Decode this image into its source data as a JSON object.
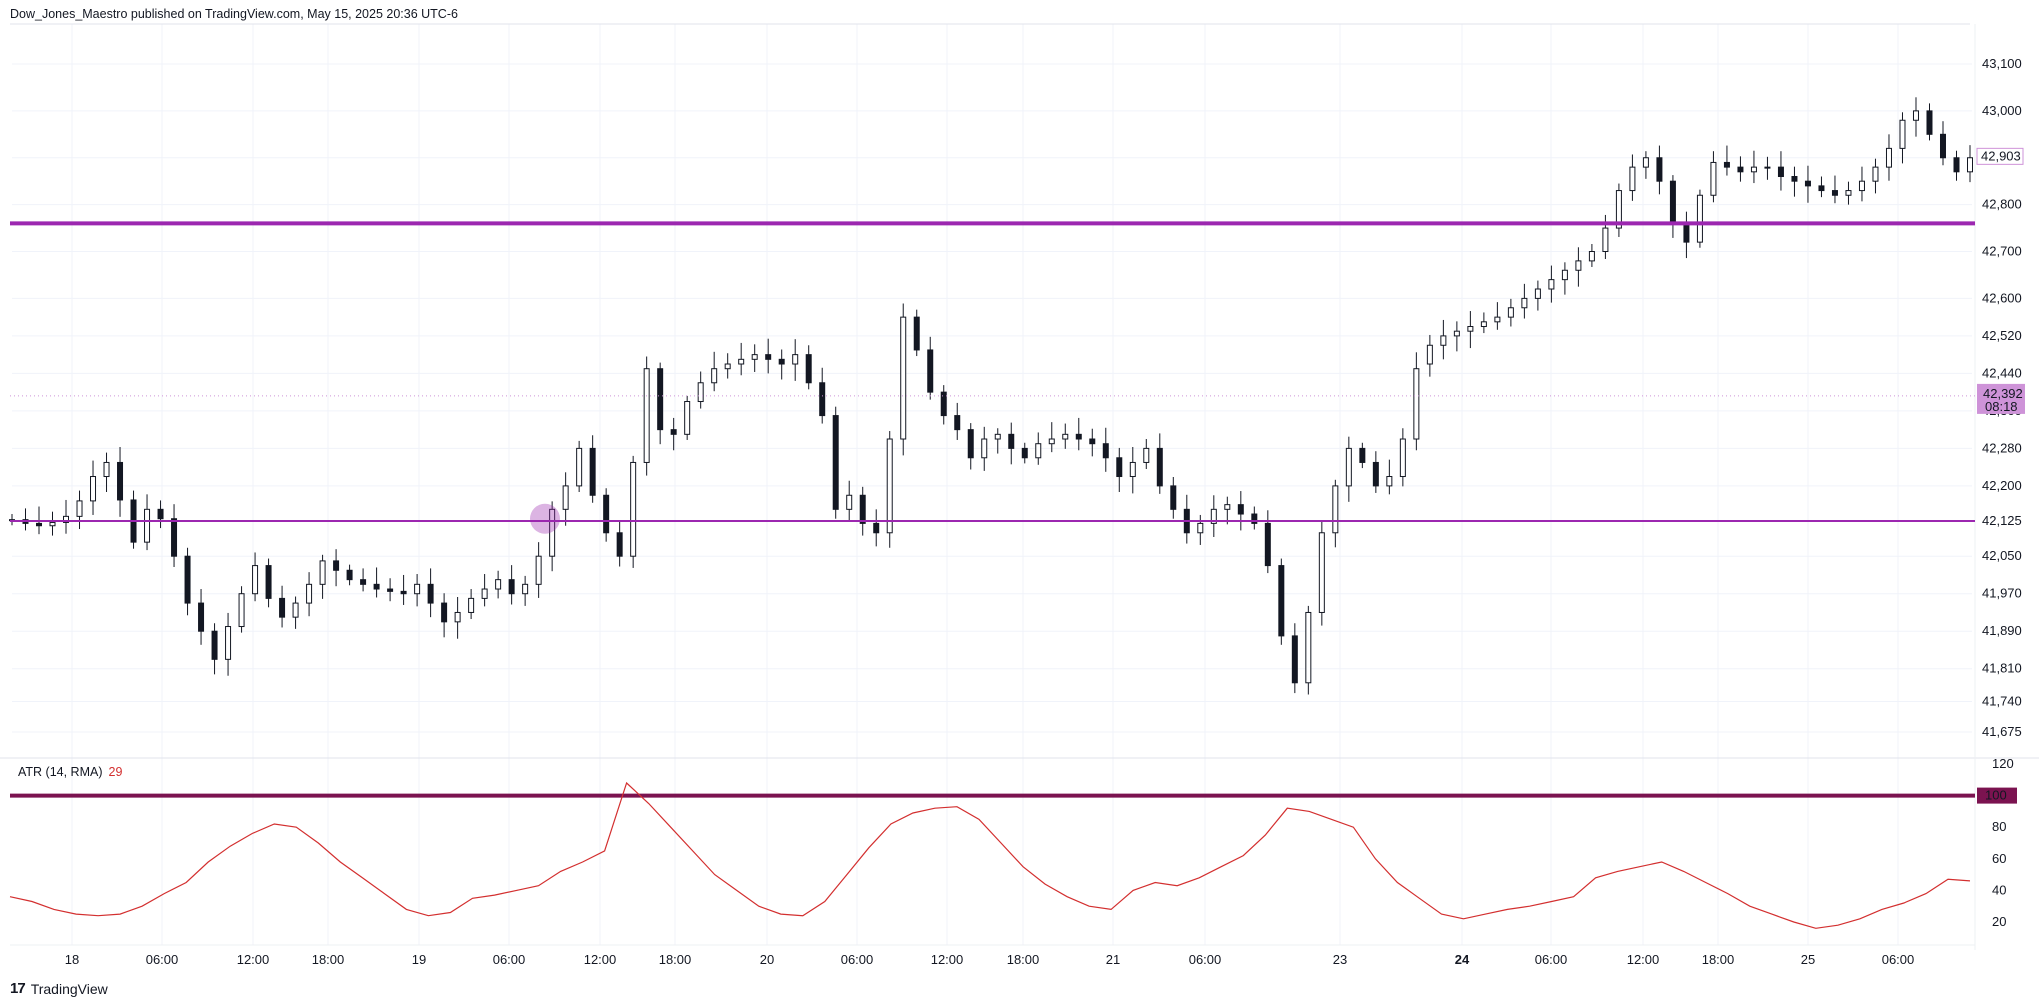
{
  "header": {
    "published_text": "Dow_Jones_Maestro published on TradingView.com, May 15, 2025 20:36 UTC-6"
  },
  "footer": {
    "logo_glyph": "17",
    "brand": "TradingView"
  },
  "colors": {
    "level_line": "#9c27b0",
    "atr_line": "#d32f2f",
    "atr_threshold": "#7b1350",
    "price_tag": "#ce93d8",
    "candle": "#131722"
  },
  "chart_data": [
    {
      "type": "candlestick",
      "title": "",
      "ylim": [
        41630,
        43170
      ],
      "y_ticks": [
        "43,100",
        "43,000",
        "42,900",
        "42,800",
        "42,700",
        "42,600",
        "42,520",
        "42,440",
        "42,360",
        "42,280",
        "42,200",
        "42,125",
        "42,050",
        "41,970",
        "41,890",
        "41,810",
        "41,740",
        "41,675"
      ],
      "last_price_tag": {
        "value": "42,392",
        "countdown": "08:18"
      },
      "reference_price_tag": "42,903",
      "horizontal_levels": [
        {
          "value": 42760,
          "style": "thick"
        },
        {
          "value": 42125,
          "style": "thin"
        }
      ],
      "marker_value": 42130,
      "series": [
        {
          "values": [
            42128,
            42120,
            42115,
            42122,
            42135,
            42168,
            42220,
            42250,
            42170,
            42080,
            42150,
            42130,
            42050,
            41950,
            41890,
            41830,
            41900,
            41970,
            42030,
            41960,
            41920,
            41950,
            41990,
            42040,
            42020,
            42000,
            41990,
            41980,
            41975,
            41970,
            41990,
            41950,
            41910,
            41930,
            41960,
            41980,
            42000,
            41970,
            41990,
            42050,
            42150,
            42200,
            42280,
            42180,
            42100,
            42050,
            42250,
            42450,
            42320,
            42310,
            42380,
            42420,
            42450,
            42460,
            42470,
            42480,
            42470,
            42460,
            42480,
            42420,
            42350,
            42150,
            42180,
            42120,
            42100,
            42300,
            42560,
            42490,
            42400,
            42350,
            42320,
            42260,
            42300,
            42310,
            42280,
            42260,
            42290,
            42300,
            42310,
            42300,
            42290,
            42260,
            42220,
            42250,
            42280,
            42200,
            42150,
            42100,
            42120,
            42150,
            42160,
            42140,
            42120,
            42030,
            41880,
            41780,
            41930,
            42100,
            42200,
            42280,
            42250,
            42200,
            42220,
            42300,
            42450,
            42500,
            42520,
            42530,
            42540,
            42550,
            42560,
            42580,
            42600,
            42620,
            42640,
            42660,
            42680,
            42700,
            42750,
            42830,
            42880,
            42900,
            42850,
            42760,
            42720,
            42820,
            42890,
            42880,
            42870,
            42880,
            42880,
            42860,
            42850,
            42840,
            42830,
            42820,
            42830,
            42850,
            42880,
            42920,
            42980,
            43000,
            42950,
            42900,
            42870,
            42900
          ]
        }
      ]
    },
    {
      "type": "line",
      "title": "",
      "legend": {
        "label": "ATR (14, RMA)",
        "value": "29"
      },
      "ylim": [
        5,
        127
      ],
      "y_ticks": [
        "120",
        "80",
        "60",
        "40",
        "20"
      ],
      "threshold_tag": "100",
      "threshold": 100,
      "x_ticks": [
        "18",
        "06:00",
        "12:00",
        "18:00",
        "19",
        "06:00",
        "12:00",
        "18:00",
        "20",
        "06:00",
        "12:00",
        "18:00",
        "21",
        "06:00",
        "23",
        "24",
        "06:00",
        "12:00",
        "18:00",
        "25",
        "06:00"
      ],
      "series": [
        {
          "name": "ATR (14, RMA)",
          "values": [
            36,
            33,
            28,
            25,
            24,
            25,
            30,
            38,
            45,
            58,
            68,
            76,
            82,
            80,
            70,
            58,
            48,
            38,
            28,
            24,
            26,
            35,
            37,
            40,
            43,
            52,
            58,
            65,
            108,
            95,
            80,
            65,
            50,
            40,
            30,
            25,
            24,
            33,
            50,
            67,
            82,
            89,
            92,
            93,
            85,
            70,
            55,
            44,
            36,
            30,
            28,
            40,
            45,
            43,
            48,
            55,
            62,
            75,
            92,
            90,
            85,
            80,
            60,
            45,
            35,
            25,
            22,
            25,
            28,
            30,
            33,
            36,
            48,
            52,
            55,
            58,
            52,
            45,
            38,
            30,
            25,
            20,
            16,
            18,
            22,
            28,
            32,
            38,
            47,
            46
          ]
        }
      ]
    }
  ]
}
